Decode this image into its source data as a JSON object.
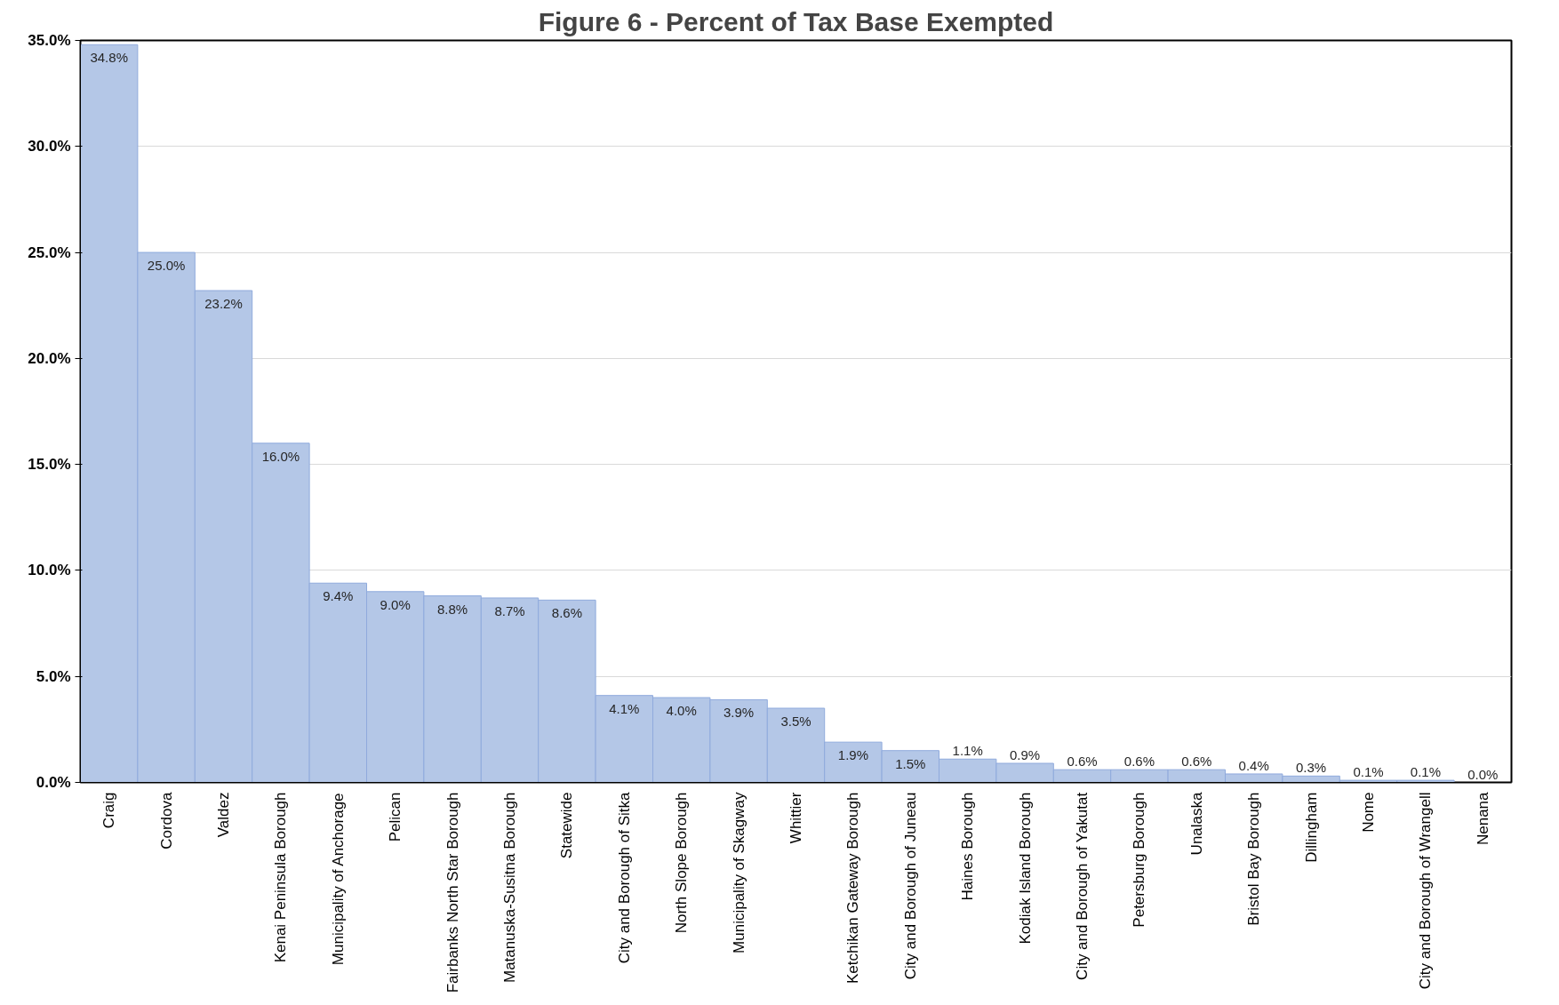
{
  "chart_data": {
    "type": "bar",
    "title": "Figure 6 - Percent of Tax Base Exempted",
    "categories": [
      "Craig",
      "Cordova",
      "Valdez",
      "Kenai Peninsula Borough",
      "Municipality of Anchorage",
      "Pelican",
      "Fairbanks North Star Borough",
      "Matanuska-Susitna Borough",
      "Statewide",
      "City and Borough of Sitka",
      "North Slope Borough",
      "Municipality of Skagway",
      "Whittier",
      "Ketchikan Gateway Borough",
      "City and Borough of Juneau",
      "Haines Borough",
      "Kodiak Island Borough",
      "City and Borough of Yakutat",
      "Petersburg Borough",
      "Unalaska",
      "Bristol Bay Borough",
      "Dillingham",
      "Nome",
      "City and Borough of Wrangell",
      "Nenana"
    ],
    "values": [
      34.8,
      25.0,
      23.2,
      16.0,
      9.4,
      9.0,
      8.8,
      8.7,
      8.6,
      4.1,
      4.0,
      3.9,
      3.5,
      1.9,
      1.5,
      1.1,
      0.9,
      0.6,
      0.6,
      0.6,
      0.4,
      0.3,
      0.1,
      0.1,
      0.0
    ],
    "value_labels": [
      "34.8%",
      "25.0%",
      "23.2%",
      "16.0%",
      "9.4%",
      "9.0%",
      "8.8%",
      "8.7%",
      "8.6%",
      "4.1%",
      "4.0%",
      "3.9%",
      "3.5%",
      "1.9%",
      "1.5%",
      "1.1%",
      "0.9%",
      "0.6%",
      "0.6%",
      "0.6%",
      "0.4%",
      "0.3%",
      "0.1%",
      "0.1%",
      "0.0%"
    ],
    "color": "#b4c7e7",
    "ylim": [
      0,
      35
    ],
    "yticks": [
      {
        "value": 0,
        "label": "0.0%"
      },
      {
        "value": 5,
        "label": "5.0%"
      },
      {
        "value": 10,
        "label": "10.0%"
      },
      {
        "value": 15,
        "label": "15.0%"
      },
      {
        "value": 20,
        "label": "20.0%"
      },
      {
        "value": 25,
        "label": "25.0%"
      },
      {
        "value": 30,
        "label": "30.0%"
      },
      {
        "value": 35,
        "label": "35.0%"
      }
    ],
    "grid": "y"
  }
}
